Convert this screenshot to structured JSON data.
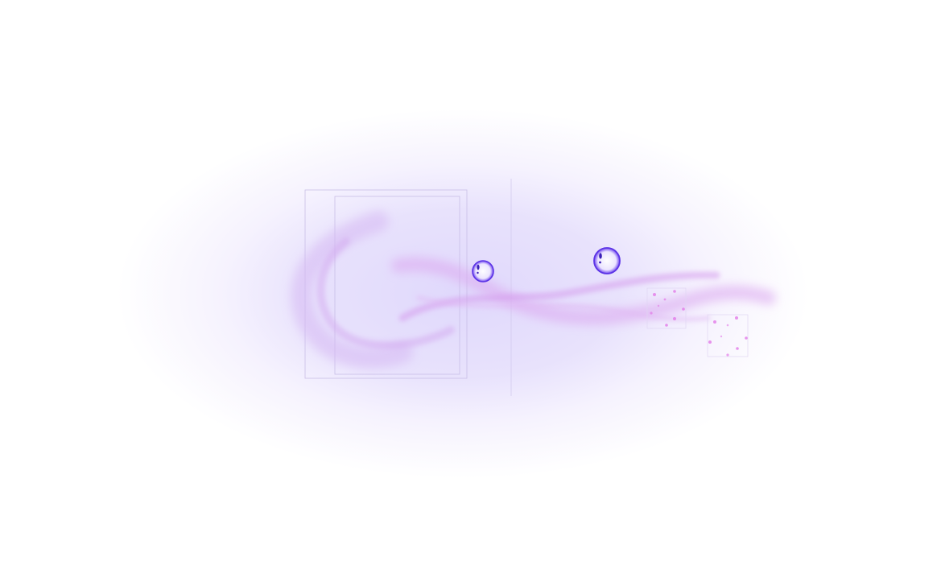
{
  "colors": {
    "glow": "#dcd4fb",
    "frame": "#c9bfe6",
    "ribbon": "#d8a6ee",
    "bubble": "#6a3ef0",
    "particle": "#e27ae8"
  },
  "objects": {
    "bubbles": 2,
    "particle_clusters": 2
  }
}
